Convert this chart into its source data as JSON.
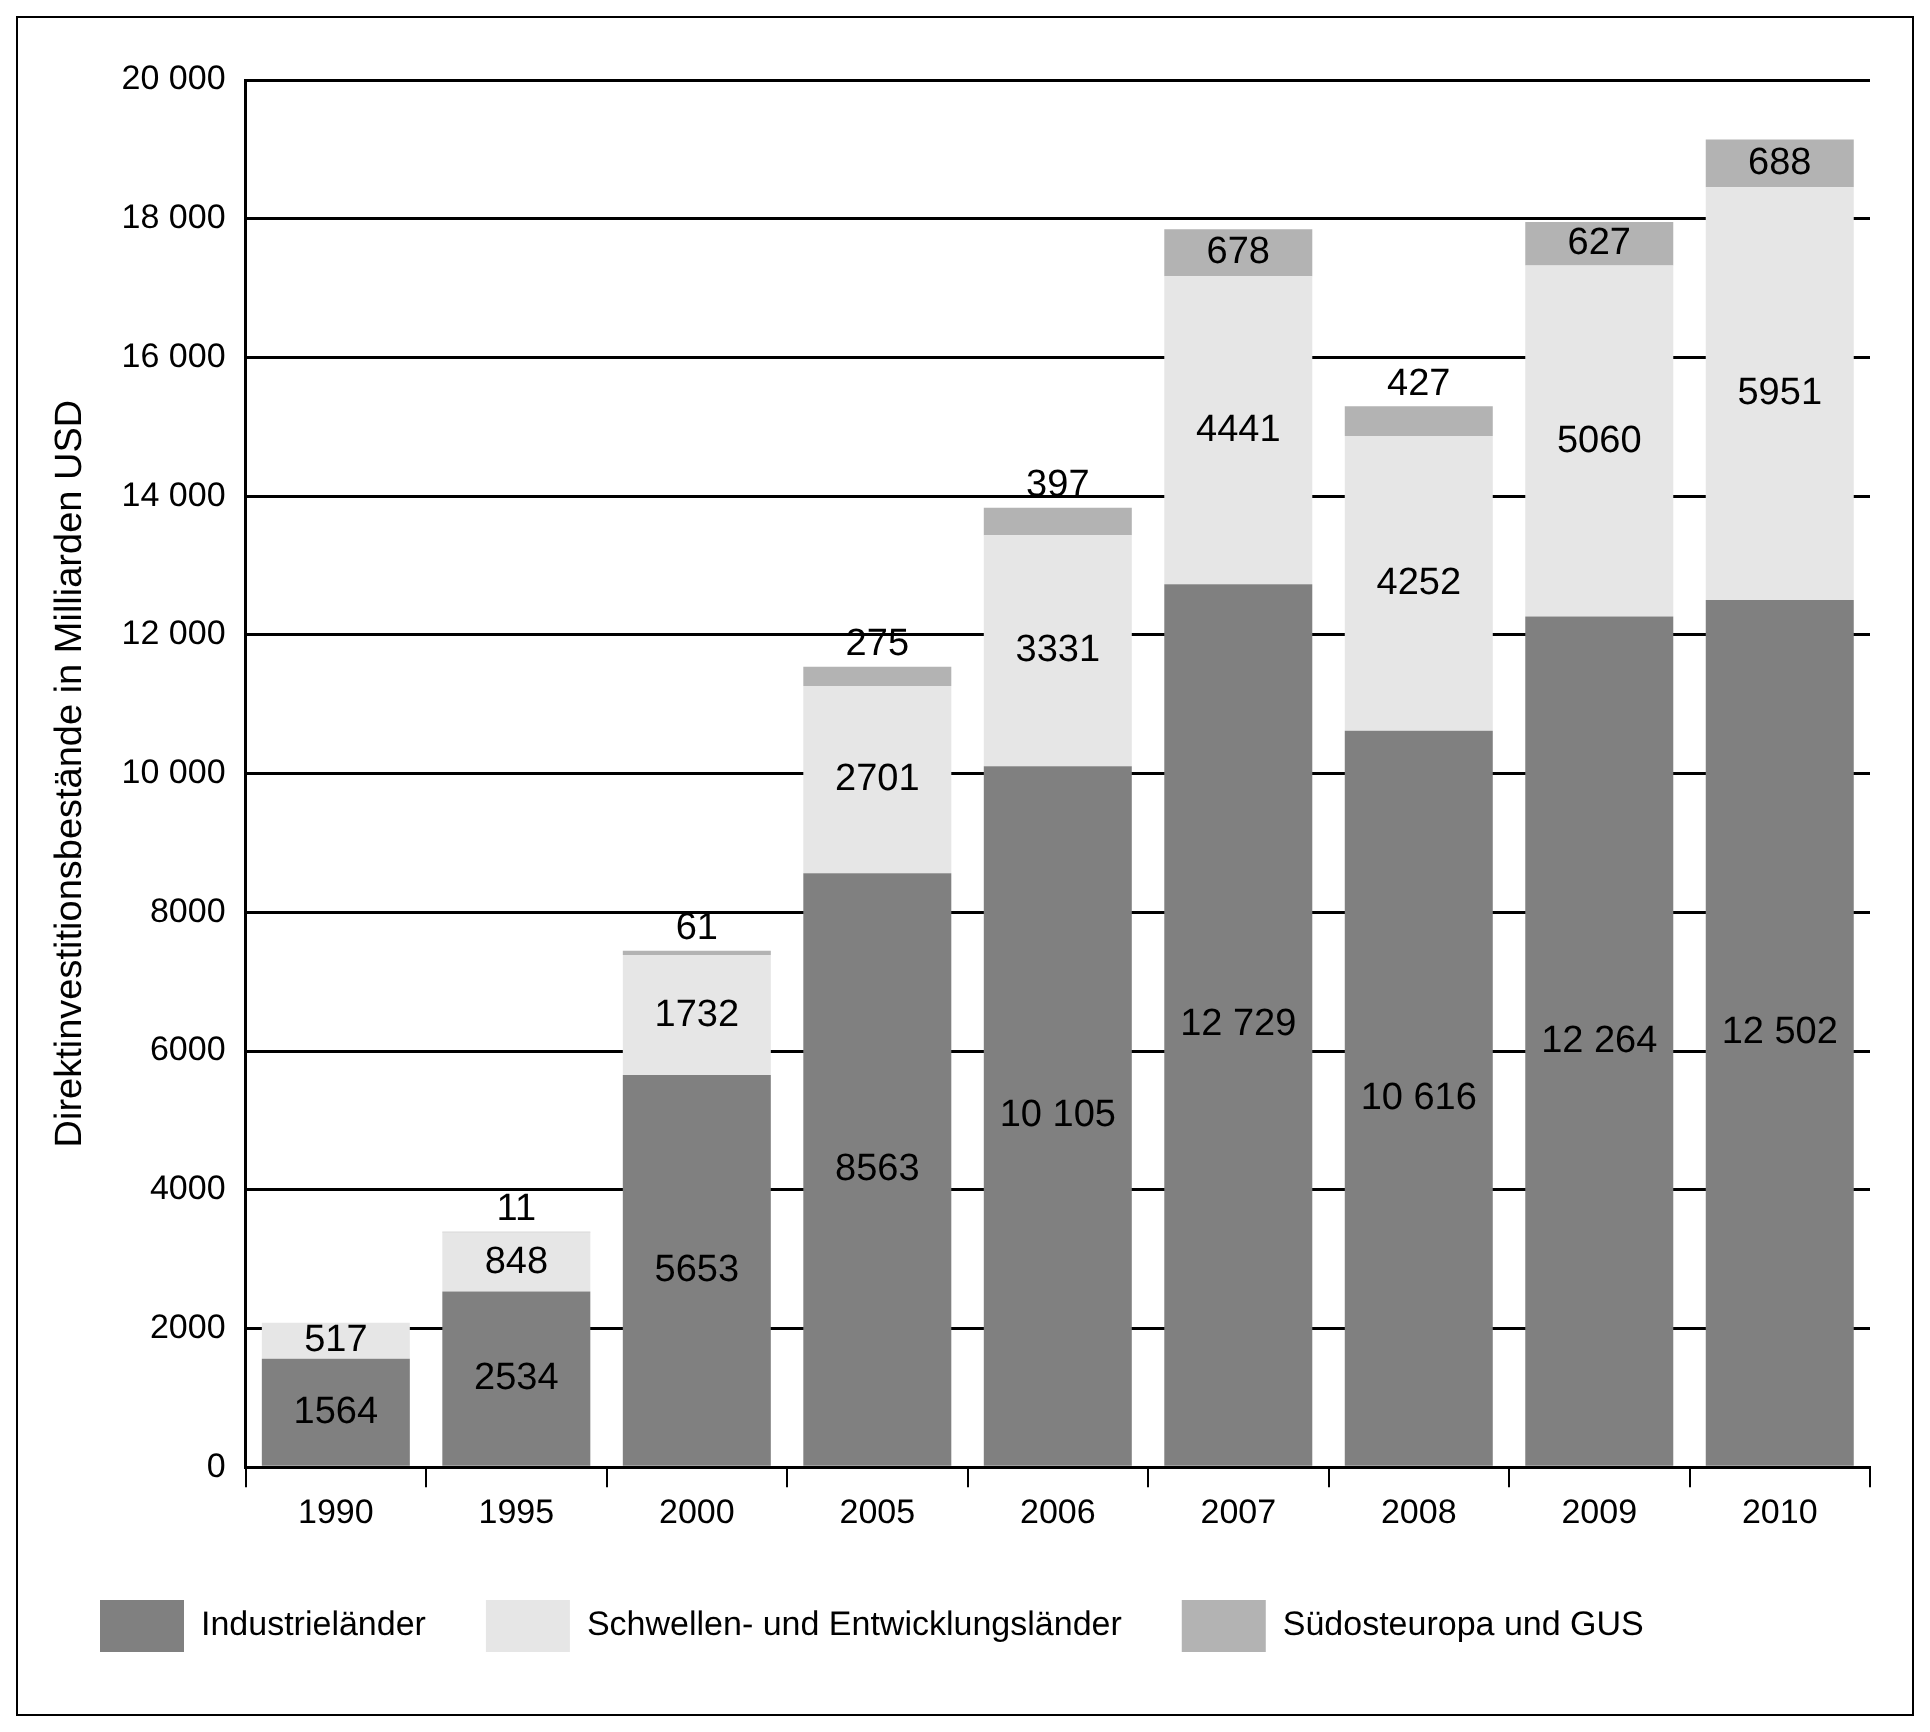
{
  "chart_data": {
    "type": "bar",
    "stacked": true,
    "ylabel": "Direktinvestitionsbestände in Milliarden USD",
    "categories": [
      "1990",
      "1995",
      "2000",
      "2005",
      "2006",
      "2007",
      "2008",
      "2009",
      "2010"
    ],
    "series": [
      {
        "name": "Industrieländer",
        "color": "#808080",
        "values": [
          1564,
          2534,
          5653,
          8563,
          10105,
          12729,
          10616,
          12264,
          12502
        ],
        "value_labels": [
          "1564",
          "2534",
          "5653",
          "8563",
          "10 105",
          "12 729",
          "10 616",
          "12 264",
          "12 502"
        ]
      },
      {
        "name": "Schwellen- und Entwicklungsländer",
        "color": "#e6e6e6",
        "values": [
          517,
          848,
          1732,
          2701,
          3331,
          4441,
          4252,
          5060,
          5951
        ],
        "value_labels": [
          "517",
          "848",
          "1732",
          "2701",
          "3331",
          "4441",
          "4252",
          "5060",
          "5951"
        ]
      },
      {
        "name": "Südosteuropa und GUS",
        "color": "#b3b3b3",
        "values": [
          0,
          11,
          61,
          275,
          397,
          678,
          427,
          627,
          688
        ],
        "value_labels": [
          null,
          "11",
          "61",
          "275",
          "397",
          "678",
          "427",
          "627",
          "688"
        ]
      }
    ],
    "ylim": [
      0,
      20000
    ],
    "yticks": [
      0,
      2000,
      4000,
      6000,
      8000,
      {
        "value": 10000,
        "label": "10 000"
      },
      {
        "value": 12000,
        "label": "12 000"
      },
      {
        "value": 14000,
        "label": "14 000"
      },
      {
        "value": 16000,
        "label": "16 000"
      },
      {
        "value": 18000,
        "label": "18 000"
      },
      {
        "value": 20000,
        "label": "20 000"
      }
    ],
    "grid": "y",
    "legend": "bottom"
  }
}
